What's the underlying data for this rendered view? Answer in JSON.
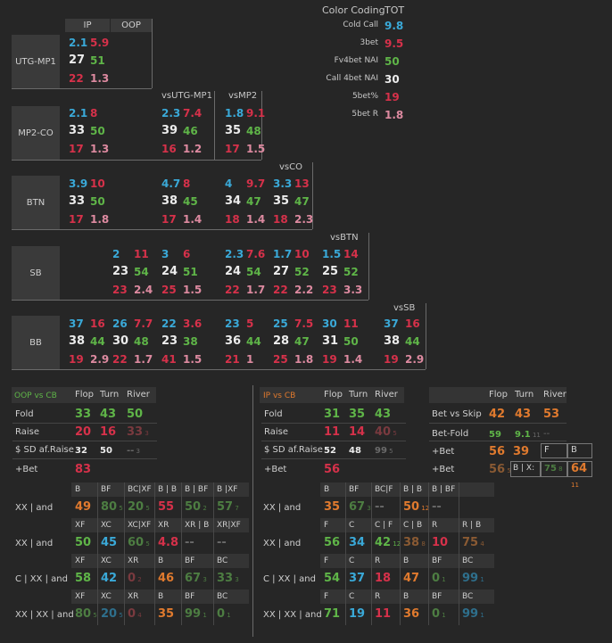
{
  "color_coding": {
    "title": "Color Coding",
    "tot": "TOT",
    "rows": [
      {
        "label": "Cold Call",
        "value": "9.8",
        "color": "#3aa9d8"
      },
      {
        "label": "3bet",
        "value": "9.5",
        "color": "#d6314a"
      },
      {
        "label": "Fv4bet NAI",
        "value": "50",
        "color": "#5fb548"
      },
      {
        "label": "Call 4bet NAI",
        "value": "30",
        "color": "#ececec"
      },
      {
        "label": "5bet%",
        "value": "19",
        "color": "#d6314a"
      },
      {
        "label": "5bet R",
        "value": "1.8",
        "color": "#dd8aa0"
      }
    ]
  },
  "preflop": {
    "col_ip": "IP",
    "col_oop": "OOP",
    "positions": [
      "UTG-MP1",
      "MP2-CO",
      "BTN",
      "SB",
      "BB"
    ],
    "vs_headers": [
      "vsUTG-MP1",
      "vsMP2",
      "vsCO",
      "vsBTN",
      "vsSB"
    ],
    "groups": {
      "utg_ip": [
        "2.1",
        "5.9",
        "27",
        "51",
        "22",
        "1.3"
      ],
      "mp2_ip": [
        "2.1",
        "8",
        "33",
        "50",
        "17",
        "1.3"
      ],
      "mp2_vsutg": [
        "2.3",
        "7.4",
        "39",
        "46",
        "16",
        "1.2"
      ],
      "mp2_vsmp2": [
        "1.8",
        "9.1",
        "35",
        "48",
        "17",
        "1.5"
      ],
      "btn_ip": [
        "3.9",
        "10",
        "33",
        "50",
        "17",
        "1.8"
      ],
      "btn_vsutg": [
        "4.7",
        "8",
        "38",
        "45",
        "17",
        "1.4"
      ],
      "btn_vsmp2": [
        "4",
        "9.7",
        "34",
        "47",
        "18",
        "1.4"
      ],
      "btn_vsco": [
        "3.3",
        "13",
        "35",
        "47",
        "18",
        "2.3"
      ],
      "sb_oop": [
        "2",
        "11",
        "23",
        "54",
        "23",
        "2.4"
      ],
      "sb_vsutg": [
        "3",
        "6",
        "24",
        "51",
        "25",
        "1.5"
      ],
      "sb_vsmp2": [
        "2.3",
        "7.6",
        "24",
        "54",
        "22",
        "1.7"
      ],
      "sb_vsco": [
        "1.7",
        "10",
        "27",
        "52",
        "22",
        "2.2"
      ],
      "sb_vsbtn": [
        "1.5",
        "14",
        "25",
        "52",
        "23",
        "3.3"
      ],
      "bb_ip": [
        "37",
        "16",
        "38",
        "44",
        "19",
        "2.9"
      ],
      "bb_oop": [
        "26",
        "7.7",
        "30",
        "48",
        "22",
        "1.7"
      ],
      "bb_vsutg": [
        "22",
        "3.6",
        "23",
        "38",
        "41",
        "1.5"
      ],
      "bb_vsmp2": [
        "23",
        "5",
        "36",
        "44",
        "21",
        "1"
      ],
      "bb_vsco": [
        "25",
        "7.5",
        "28",
        "47",
        "25",
        "1.8"
      ],
      "bb_vsbtn": [
        "30",
        "11",
        "31",
        "50",
        "19",
        "1.4"
      ],
      "bb_vssb": [
        "37",
        "16",
        "38",
        "44",
        "19",
        "2.9"
      ]
    }
  },
  "oop_cb": {
    "title": "OOP vs CB",
    "cols": [
      "Flop",
      "Turn",
      "River"
    ],
    "rows": [
      {
        "label": "Fold",
        "vals": [
          "33",
          "43",
          "50"
        ]
      },
      {
        "label": "Raise",
        "vals": [
          "20",
          "16",
          "33"
        ],
        "subs": [
          "",
          "",
          "3"
        ]
      },
      {
        "label": "$ SD af.Raise",
        "vals": [
          "32",
          "50",
          "--"
        ],
        "subs": [
          "",
          "",
          "3"
        ]
      },
      {
        "label": "+Bet",
        "vals": [
          "83",
          "",
          ""
        ]
      }
    ]
  },
  "ip_cb": {
    "title": "IP vs CB",
    "cols": [
      "Flop",
      "Turn",
      "River"
    ],
    "rows": [
      {
        "label": "Fold",
        "vals": [
          "31",
          "35",
          "43"
        ]
      },
      {
        "label": "Raise",
        "vals": [
          "11",
          "14",
          "40"
        ],
        "subs": [
          "",
          "",
          "5"
        ]
      },
      {
        "label": "$ SD af.Raise",
        "vals": [
          "52",
          "48",
          "99"
        ],
        "subs": [
          "",
          "",
          "5"
        ]
      },
      {
        "label": "+Bet",
        "vals": [
          "56",
          "",
          ""
        ]
      }
    ]
  },
  "bet_table": {
    "cols": [
      "Flop",
      "Turn",
      "River"
    ],
    "rows": [
      {
        "label": "Bet vs Skip",
        "vals": [
          "42",
          "43",
          "53"
        ]
      },
      {
        "label": "Bet-Fold",
        "vals": [
          "59",
          "9.1",
          "--"
        ],
        "subs": [
          "",
          "11",
          ""
        ]
      },
      {
        "label": "+Bet",
        "vals": [
          "56",
          "39"
        ],
        "extra": [
          "F",
          "B"
        ]
      },
      {
        "label": "+Bet",
        "vals": [
          "56",
          "B | X:",
          "75",
          "64"
        ],
        "subs": [
          "5",
          "",
          "8",
          "11"
        ]
      }
    ]
  },
  "left_lines": {
    "rows": [
      {
        "label": "XX | and",
        "heads": [
          "B",
          "BF",
          "BC|XF",
          "B | B",
          "B | BF",
          "B |XF"
        ],
        "vals": [
          "49",
          "80",
          "20",
          "55",
          "50",
          "57"
        ],
        "subs": [
          "",
          "5",
          "5",
          "",
          "2",
          "7"
        ]
      },
      {
        "label": "XX | and",
        "heads": [
          "XF",
          "XC",
          "XC|XF",
          "XR",
          "XR | B",
          "XR|XF"
        ],
        "vals": [
          "50",
          "45",
          "60",
          "4.8",
          "--",
          "--"
        ],
        "subs": [
          "",
          "",
          "5",
          "",
          "",
          ""
        ]
      },
      {
        "label": "C | XX | and",
        "heads": [
          "XF",
          "XC",
          "XR",
          "B",
          "BF",
          "BC"
        ],
        "vals": [
          "58",
          "42",
          "0",
          "46",
          "67",
          "33"
        ],
        "subs": [
          "",
          "",
          "2",
          "",
          "3",
          "3"
        ]
      },
      {
        "label": "XX | XX | and",
        "heads": [
          "XF",
          "XC",
          "XR",
          "B",
          "BF",
          "BC"
        ],
        "vals": [
          "80",
          "20",
          "0",
          "35",
          "99",
          "0"
        ],
        "subs": [
          "5",
          "5",
          "4",
          "",
          "1",
          "1"
        ]
      }
    ]
  },
  "right_lines": {
    "rows": [
      {
        "label": "XX | and",
        "heads": [
          "B",
          "BF",
          "BC|F",
          "B | B",
          "B | BF"
        ],
        "vals": [
          "35",
          "67",
          "--",
          "50",
          "--"
        ],
        "subs": [
          "",
          "3",
          "",
          "12",
          ""
        ]
      },
      {
        "label": "XX | and",
        "heads": [
          "F",
          "C",
          "C | F",
          "C | B",
          "R",
          "R | B"
        ],
        "vals": [
          "56",
          "34",
          "42",
          "38",
          "10",
          "75"
        ],
        "subs": [
          "",
          "",
          "12",
          "8",
          "",
          "4"
        ]
      },
      {
        "label": "C | XX | and",
        "heads": [
          "F",
          "C",
          "R",
          "B",
          "BF",
          "BC"
        ],
        "vals": [
          "54",
          "37",
          "18",
          "47",
          "0",
          "99"
        ],
        "subs": [
          "",
          "",
          "",
          "",
          "1",
          "1"
        ]
      },
      {
        "label": "XX | XX | and",
        "heads": [
          "F",
          "C",
          "R",
          "B",
          "BF",
          "BC"
        ],
        "vals": [
          "71",
          "19",
          "11",
          "36",
          "0",
          "99"
        ],
        "subs": [
          "",
          "",
          "",
          "",
          "1",
          "1"
        ]
      }
    ]
  }
}
